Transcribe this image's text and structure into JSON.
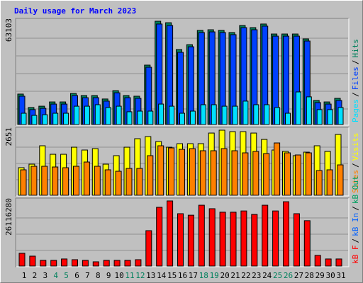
{
  "title": "Daily usage for March 2023",
  "separator": "/",
  "chart_data": [
    {
      "type": "bar",
      "ylim": [
        0,
        63103
      ],
      "yticks": [
        63103
      ],
      "series": [
        {
          "name": "Hits",
          "color": "#00805c",
          "values": [
            18600,
            10400,
            11200,
            13800,
            13800,
            19000,
            17700,
            17700,
            15600,
            20700,
            17700,
            17300,
            36300,
            63103,
            62200,
            45800,
            48800,
            57500,
            57900,
            57500,
            56200,
            60500,
            59200,
            61400,
            55300,
            55300,
            55300,
            52300,
            14700,
            13800,
            16000
          ]
        },
        {
          "name": "Files",
          "color": "#0040ff",
          "values": [
            17300,
            9100,
            9900,
            12500,
            12500,
            17700,
            16400,
            16400,
            14300,
            19400,
            16400,
            16000,
            35000,
            61400,
            60500,
            44100,
            47500,
            56200,
            56600,
            56200,
            54900,
            59200,
            57900,
            60100,
            54000,
            54000,
            54000,
            51000,
            13400,
            12500,
            14700
          ]
        },
        {
          "name": "Pages",
          "color": "#00e0ff",
          "values": [
            6900,
            5600,
            6000,
            6900,
            6900,
            11200,
            11200,
            12100,
            10400,
            11200,
            7800,
            8200,
            8200,
            12500,
            11200,
            6900,
            8200,
            12100,
            12100,
            11200,
            11200,
            14300,
            12100,
            12100,
            10400,
            6900,
            19900,
            16900,
            9100,
            9100,
            10400
          ]
        }
      ]
    },
    {
      "type": "bar",
      "ylim": [
        0,
        2651
      ],
      "yticks": [
        2651
      ],
      "series": [
        {
          "name": "Visits",
          "color": "#ffff00",
          "values": [
            1124,
            1267,
            2016,
            1670,
            1670,
            1958,
            1843,
            1901,
            1267,
            1613,
            1958,
            2304,
            2390,
            2189,
            1958,
            2102,
            2102,
            2102,
            2534,
            2651,
            2592,
            2592,
            2534,
            2275,
            1843,
            1786,
            1613,
            1757,
            2016,
            1786,
            2477
          ]
        },
        {
          "name": "Sites",
          "color": "#ff8000",
          "values": [
            1037,
            1181,
            1181,
            1152,
            1123,
            1181,
            1354,
            1181,
            1037,
            979,
            1094,
            1094,
            1613,
            2016,
            1930,
            1872,
            1901,
            1814,
            1814,
            1901,
            1814,
            1728,
            1786,
            1699,
            2131,
            1728,
            1642,
            1728,
            1008,
            1037,
            1238
          ]
        }
      ]
    },
    {
      "type": "bar",
      "ylim": [
        0,
        26116280
      ],
      "yticks": [
        26116280
      ],
      "categories": [
        "1",
        "2",
        "3",
        "4",
        "5",
        "6",
        "7",
        "8",
        "9",
        "10",
        "11",
        "12",
        "13",
        "14",
        "15",
        "16",
        "17",
        "18",
        "19",
        "20",
        "21",
        "22",
        "23",
        "24",
        "25",
        "26",
        "27",
        "28",
        "29",
        "30",
        "31"
      ],
      "category_colors": [
        "#000000",
        "#000000",
        "#000000",
        "#00805c",
        "#00805c",
        "#000000",
        "#000000",
        "#000000",
        "#000000",
        "#000000",
        "#00805c",
        "#00805c",
        "#000000",
        "#000000",
        "#000000",
        "#000000",
        "#000000",
        "#00805c",
        "#00805c",
        "#000000",
        "#000000",
        "#000000",
        "#000000",
        "#000000",
        "#00805c",
        "#00805c",
        "#000000",
        "#000000",
        "#000000",
        "#000000",
        "#000000"
      ],
      "series": [
        {
          "name": "kB F",
          "color": "#ff0000",
          "values": [
            5110000,
            3970000,
            2270000,
            2270000,
            2840000,
            2550000,
            2270000,
            1700000,
            2270000,
            2270000,
            2270000,
            2550000,
            14190000,
            23560000,
            26116280,
            21000000,
            20400000,
            24400000,
            23000000,
            21600000,
            21600000,
            22100000,
            20700000,
            24400000,
            22100000,
            25800000,
            21000000,
            18200000,
            4260000,
            2840000,
            2840000
          ]
        }
      ],
      "legend_extra": [
        {
          "name": "kB In",
          "color": "#0060ff"
        },
        {
          "name": "kB Out",
          "color": "#00a060"
        }
      ]
    }
  ]
}
